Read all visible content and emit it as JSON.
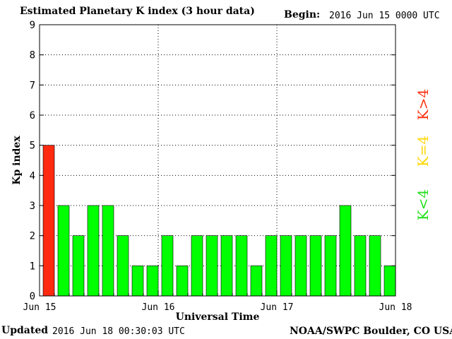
{
  "header": {
    "title": "Estimated Planetary K index (3 hour data)",
    "begin_label": "Begin:",
    "begin_value": "2016 Jun 15 0000 UTC"
  },
  "footer": {
    "updated_label": "Updated",
    "updated_value": "2016 Jun 18 00:30:03 UTC",
    "source": "NOAA/SWPC Boulder, CO USA"
  },
  "legend": [
    {
      "label": "K>4",
      "color": "#ff3010"
    },
    {
      "label": "K=4",
      "color": "#ffd700"
    },
    {
      "label": "K<4",
      "color": "#22e01a"
    }
  ],
  "colors": {
    "high": "#ff2a10",
    "mid": "#ffd700",
    "low": "#00ff00"
  },
  "chart_data": {
    "type": "bar",
    "title": "Estimated Planetary K index (3 hour data)",
    "xlabel": "Universal Time",
    "ylabel": "Kp index",
    "ylim": [
      0,
      9
    ],
    "yticks": [
      "0",
      "1",
      "2",
      "3",
      "4",
      "5",
      "6",
      "7",
      "8",
      "9"
    ],
    "xticks": [
      "Jun 15",
      "Jun 16",
      "Jun 17",
      "Jun 18"
    ],
    "categories": [
      "Jun 15 00",
      "Jun 15 03",
      "Jun 15 06",
      "Jun 15 09",
      "Jun 15 12",
      "Jun 15 15",
      "Jun 15 18",
      "Jun 15 21",
      "Jun 16 00",
      "Jun 16 03",
      "Jun 16 06",
      "Jun 16 09",
      "Jun 16 12",
      "Jun 16 15",
      "Jun 16 18",
      "Jun 16 21",
      "Jun 17 00",
      "Jun 17 03",
      "Jun 17 06",
      "Jun 17 09",
      "Jun 17 12",
      "Jun 17 15",
      "Jun 17 18",
      "Jun 17 21"
    ],
    "values": [
      5,
      3,
      2,
      3,
      3,
      2,
      1,
      1,
      2,
      1,
      2,
      2,
      2,
      2,
      1,
      2,
      2,
      2,
      2,
      2,
      3,
      2,
      2,
      1
    ],
    "grid": true
  }
}
